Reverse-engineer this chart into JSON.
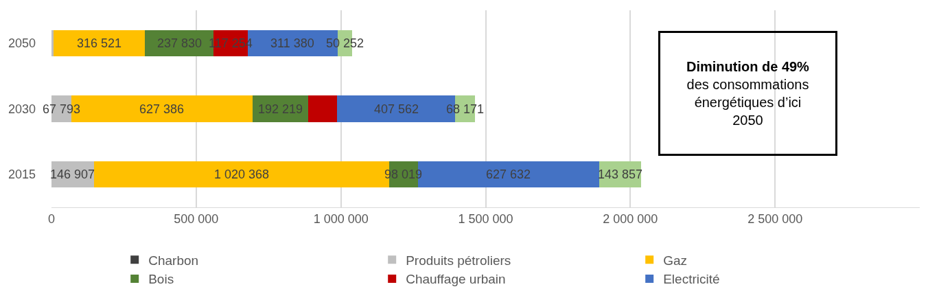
{
  "chart_data": {
    "type": "bar",
    "orientation": "horizontal",
    "stacked": true,
    "categories": [
      "2050",
      "2030",
      "2015"
    ],
    "series": [
      {
        "name": "Charbon",
        "color": "#404040",
        "values": [
          0,
          0,
          0
        ],
        "value_labels": [
          null,
          null,
          null
        ]
      },
      {
        "name": "Produits pétroliers",
        "color": "#bfbfbf",
        "values": [
          6000,
          67793,
          146907
        ],
        "value_labels": [
          null,
          "67 793",
          "146 907"
        ]
      },
      {
        "name": "Gaz",
        "color": "#ffc000",
        "values": [
          316521,
          627386,
          1020368
        ],
        "value_labels": [
          "316 521",
          "627 386",
          "1 020 368"
        ]
      },
      {
        "name": "Bois",
        "color": "#548235",
        "values": [
          237830,
          192219,
          98019
        ],
        "value_labels": [
          "237 830",
          "192 219",
          "98 019"
        ]
      },
      {
        "name": "Chauffage urbain",
        "color": "#c00000",
        "values": [
          117254,
          100000,
          0
        ],
        "value_labels": [
          "117 254",
          null,
          null
        ]
      },
      {
        "name": "Electricité",
        "color": "#4472c4",
        "values": [
          311380,
          407562,
          627632
        ],
        "value_labels": [
          "311 380",
          "407 562",
          "627 632"
        ]
      },
      {
        "color": "#a9d18e",
        "values": [
          50252,
          68171,
          143857
        ],
        "value_labels": [
          "50 252",
          "68 171",
          "143 857"
        ]
      }
    ],
    "xlim": [
      0,
      3000000
    ],
    "xticks": [
      0,
      {
        "value": 500000,
        "label": "500 000"
      },
      {
        "value": 1000000,
        "label": "1 000 000"
      },
      {
        "value": 1500000,
        "label": "1 500 000"
      },
      {
        "value": 2000000,
        "label": "2 000 000"
      },
      {
        "value": 2500000,
        "label": "2 500 000"
      }
    ],
    "grid": "x",
    "legend": "bottom",
    "annotations": [
      "Diminution de 49%",
      "des consommations énergétiques d’ici 2050"
    ]
  }
}
